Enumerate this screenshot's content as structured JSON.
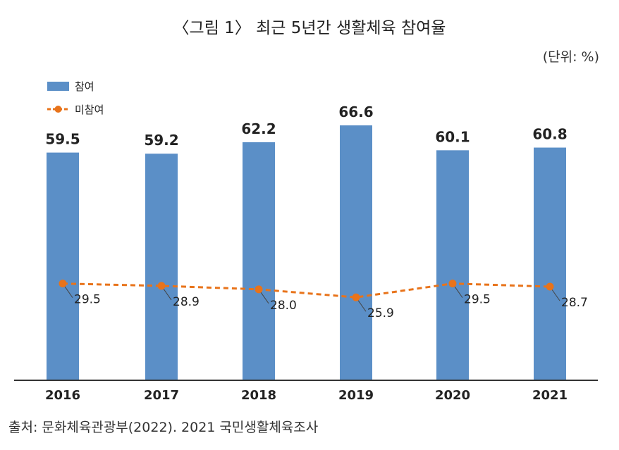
{
  "title": "〈그림 1〉 최근 5년간 생활체육 참여율",
  "unit_label": "(단위: %)",
  "source": "출처: 문화체육관광부(2022). 2021 국민생활체육조사",
  "colors": {
    "bar": "#5b8fc7",
    "line": "#e8731a",
    "axis": "#333333"
  },
  "chart_data": {
    "type": "bar",
    "categories": [
      "2016",
      "2017",
      "2018",
      "2019",
      "2020",
      "2021"
    ],
    "series": [
      {
        "name": "참여",
        "type": "bar",
        "values": [
          59.5,
          59.2,
          62.2,
          66.6,
          60.1,
          60.8
        ]
      },
      {
        "name": "미참여",
        "type": "line",
        "style": "dashed",
        "values": [
          29.5,
          28.9,
          28.0,
          25.9,
          29.5,
          28.7
        ]
      }
    ],
    "ylim": [
      0,
      70
    ],
    "grid": false,
    "legend": "top-left"
  }
}
